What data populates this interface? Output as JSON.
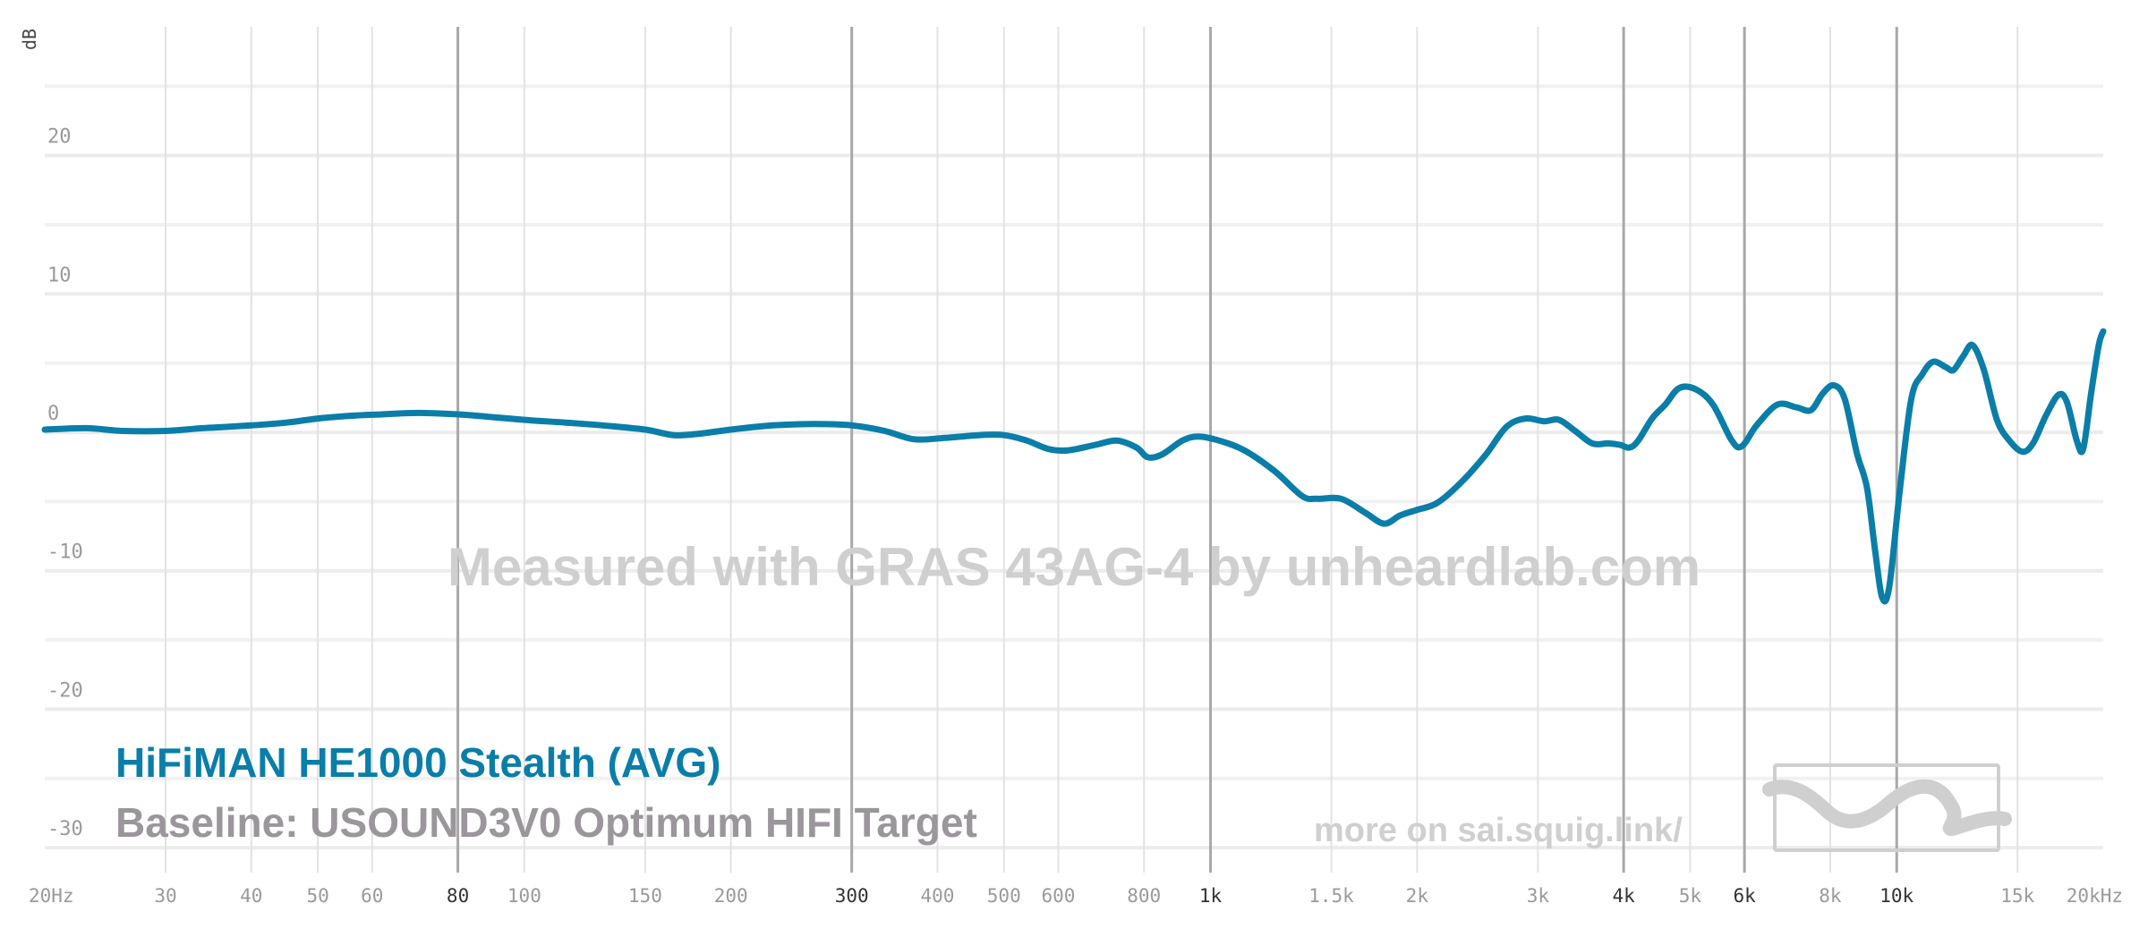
{
  "chart_data": {
    "type": "line",
    "xscale": "log",
    "xlim": [
      20,
      20000
    ],
    "ylim": [
      -32,
      28
    ],
    "ylabel": "dB",
    "y_ticks": [
      {
        "value": 20,
        "label": "20"
      },
      {
        "value": 10,
        "label": "10"
      },
      {
        "value": 0,
        "label": "0"
      },
      {
        "value": -10,
        "label": "-10"
      },
      {
        "value": -20,
        "label": "-20"
      },
      {
        "value": -30,
        "label": "-30"
      }
    ],
    "x_ticks": [
      {
        "value": 20,
        "label": "20Hz",
        "major": false
      },
      {
        "value": 30,
        "label": "30",
        "major": false
      },
      {
        "value": 40,
        "label": "40",
        "major": false
      },
      {
        "value": 50,
        "label": "50",
        "major": false
      },
      {
        "value": 60,
        "label": "60",
        "major": false
      },
      {
        "value": 80,
        "label": "80",
        "major": true
      },
      {
        "value": 100,
        "label": "100",
        "major": false
      },
      {
        "value": 150,
        "label": "150",
        "major": false
      },
      {
        "value": 200,
        "label": "200",
        "major": false
      },
      {
        "value": 300,
        "label": "300",
        "major": true
      },
      {
        "value": 400,
        "label": "400",
        "major": false
      },
      {
        "value": 500,
        "label": "500",
        "major": false
      },
      {
        "value": 600,
        "label": "600",
        "major": false
      },
      {
        "value": 800,
        "label": "800",
        "major": false
      },
      {
        "value": 1000,
        "label": "1k",
        "major": true
      },
      {
        "value": 1500,
        "label": "1.5k",
        "major": false
      },
      {
        "value": 2000,
        "label": "2k",
        "major": false
      },
      {
        "value": 3000,
        "label": "3k",
        "major": false
      },
      {
        "value": 4000,
        "label": "4k",
        "major": true
      },
      {
        "value": 5000,
        "label": "5k",
        "major": false
      },
      {
        "value": 6000,
        "label": "6k",
        "major": true
      },
      {
        "value": 8000,
        "label": "8k",
        "major": false
      },
      {
        "value": 10000,
        "label": "10k",
        "major": true
      },
      {
        "value": 15000,
        "label": "15k",
        "major": false
      },
      {
        "value": 20000,
        "label": "20kHz",
        "major": false
      }
    ],
    "minor_gridlines_db": [
      25,
      15,
      5,
      -5,
      -15,
      -25
    ],
    "series": [
      {
        "name": "HiFiMAN HE1000 Stealth (AVG)",
        "color": "#0a7ea8",
        "points": [
          [
            20,
            0.2
          ],
          [
            23,
            0.3
          ],
          [
            26,
            0.1
          ],
          [
            30,
            0.1
          ],
          [
            34,
            0.3
          ],
          [
            40,
            0.5
          ],
          [
            45,
            0.7
          ],
          [
            50,
            1.0
          ],
          [
            56,
            1.2
          ],
          [
            62,
            1.3
          ],
          [
            70,
            1.4
          ],
          [
            80,
            1.3
          ],
          [
            90,
            1.1
          ],
          [
            100,
            0.9
          ],
          [
            115,
            0.7
          ],
          [
            130,
            0.5
          ],
          [
            150,
            0.2
          ],
          [
            165,
            -0.2
          ],
          [
            180,
            -0.1
          ],
          [
            200,
            0.2
          ],
          [
            230,
            0.5
          ],
          [
            265,
            0.6
          ],
          [
            300,
            0.5
          ],
          [
            335,
            0.1
          ],
          [
            370,
            -0.5
          ],
          [
            410,
            -0.4
          ],
          [
            460,
            -0.2
          ],
          [
            500,
            -0.2
          ],
          [
            540,
            -0.6
          ],
          [
            580,
            -1.2
          ],
          [
            620,
            -1.3
          ],
          [
            680,
            -0.9
          ],
          [
            730,
            -0.6
          ],
          [
            780,
            -1.1
          ],
          [
            810,
            -1.8
          ],
          [
            850,
            -1.6
          ],
          [
            910,
            -0.6
          ],
          [
            960,
            -0.3
          ],
          [
            1030,
            -0.6
          ],
          [
            1120,
            -1.3
          ],
          [
            1240,
            -2.8
          ],
          [
            1360,
            -4.6
          ],
          [
            1430,
            -4.8
          ],
          [
            1550,
            -4.8
          ],
          [
            1680,
            -5.8
          ],
          [
            1790,
            -6.6
          ],
          [
            1890,
            -6.0
          ],
          [
            2000,
            -5.6
          ],
          [
            2140,
            -5.1
          ],
          [
            2320,
            -3.6
          ],
          [
            2520,
            -1.6
          ],
          [
            2700,
            0.4
          ],
          [
            2880,
            1.0
          ],
          [
            3060,
            0.8
          ],
          [
            3220,
            0.9
          ],
          [
            3400,
            0.1
          ],
          [
            3600,
            -0.8
          ],
          [
            3800,
            -0.8
          ],
          [
            3950,
            -0.9
          ],
          [
            4080,
            -1.1
          ],
          [
            4200,
            -0.6
          ],
          [
            4400,
            1.0
          ],
          [
            4600,
            2.0
          ],
          [
            4820,
            3.2
          ],
          [
            5100,
            3.1
          ],
          [
            5400,
            2.0
          ],
          [
            5750,
            -0.6
          ],
          [
            5950,
            -1.0
          ],
          [
            6250,
            0.5
          ],
          [
            6700,
            2.0
          ],
          [
            7150,
            1.8
          ],
          [
            7500,
            1.6
          ],
          [
            7800,
            2.8
          ],
          [
            8100,
            3.4
          ],
          [
            8400,
            2.4
          ],
          [
            8750,
            -1.5
          ],
          [
            9050,
            -4.0
          ],
          [
            9300,
            -8.5
          ],
          [
            9520,
            -11.9
          ],
          [
            9750,
            -11.2
          ],
          [
            10100,
            -4.3
          ],
          [
            10500,
            2.4
          ],
          [
            10900,
            4.2
          ],
          [
            11300,
            5.1
          ],
          [
            11800,
            4.7
          ],
          [
            12100,
            4.5
          ],
          [
            12500,
            5.5
          ],
          [
            12900,
            6.3
          ],
          [
            13400,
            4.5
          ],
          [
            14000,
            0.9
          ],
          [
            14600,
            -0.6
          ],
          [
            15250,
            -1.4
          ],
          [
            15800,
            -0.8
          ],
          [
            16500,
            1.2
          ],
          [
            17200,
            2.7
          ],
          [
            17700,
            2.2
          ],
          [
            18300,
            -0.6
          ],
          [
            18700,
            -1.2
          ],
          [
            19200,
            2.8
          ],
          [
            19700,
            6.3
          ],
          [
            20000,
            7.3
          ]
        ]
      }
    ]
  },
  "legend": {
    "series_label": "HiFiMAN HE1000 Stealth (AVG)",
    "baseline_label": "Baseline: USOUND3V0 Optimum HIFI Target",
    "series_color": "#0a7ea8"
  },
  "watermark": "Measured with GRAS 43AG-4 by unheardlab.com",
  "footer_link": "more on sai.squig.link/",
  "logo_icon": "squiglink-wave-logo"
}
